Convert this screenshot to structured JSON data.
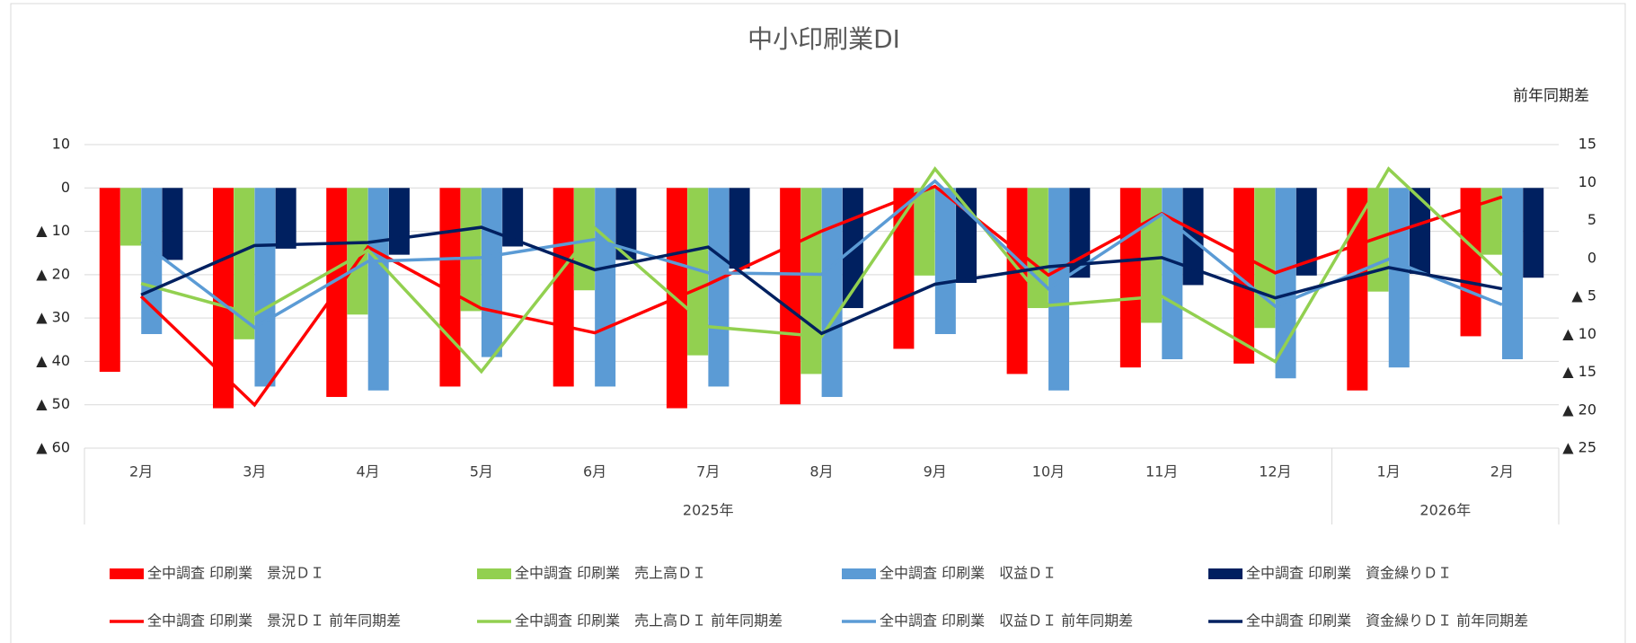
{
  "chart_data": {
    "type": "bar_line",
    "title": "中小印刷業DI",
    "y2_label": "前年同期差",
    "categories": [
      "2月",
      "3月",
      "4月",
      "5月",
      "6月",
      "7月",
      "8月",
      "9月",
      "10月",
      "11月",
      "12月",
      "1月",
      "2月"
    ],
    "groups": [
      {
        "label": "2025年",
        "span": 11
      },
      {
        "label": "2026年",
        "span": 2
      }
    ],
    "ylim": [
      -60,
      10
    ],
    "yticks": [
      10,
      0,
      {
        "value": -10,
        "label": "▲ 10"
      },
      {
        "value": -20,
        "label": "▲ 20"
      },
      {
        "value": -30,
        "label": "▲ 30"
      },
      {
        "value": -40,
        "label": "▲ 40"
      },
      {
        "value": -50,
        "label": "▲ 50"
      },
      {
        "value": -60,
        "label": "▲ 60"
      }
    ],
    "y2lim": [
      -25,
      15
    ],
    "y2ticks": [
      15,
      10,
      5,
      0,
      {
        "value": -5,
        "label": "▲ 5"
      },
      {
        "value": -10,
        "label": "▲ 10"
      },
      {
        "value": -15,
        "label": "▲ 15"
      },
      {
        "value": -20,
        "label": "▲ 20"
      },
      {
        "value": -25,
        "label": "▲ 25"
      }
    ],
    "grid": true,
    "series": [
      {
        "name": "全中調査 印刷業　景況ＤＩ",
        "kind": "bar",
        "color": "#ff0000",
        "values": [
          -42.4,
          -50.8,
          -48.2,
          -45.8,
          -45.8,
          -50.8,
          -49.9,
          -37.1,
          -42.9,
          -41.4,
          -40.5,
          -46.7,
          -34.2
        ]
      },
      {
        "name": "全中調査 印刷業　売上高ＤＩ",
        "kind": "bar",
        "color": "#92d050",
        "values": [
          -13.3,
          -34.9,
          -29.2,
          -28.4,
          -23.6,
          -38.6,
          -42.9,
          -20.2,
          -27.7,
          -31.1,
          -32.3,
          -23.9,
          -15.4
        ]
      },
      {
        "name": "全中調査 印刷業　収益ＤＩ",
        "kind": "bar",
        "color": "#5b9bd5",
        "values": [
          -33.7,
          -45.8,
          -46.7,
          -39,
          -45.8,
          -45.8,
          -48.2,
          -33.7,
          -46.7,
          -39.5,
          -43.9,
          -41.4,
          -39.5
        ]
      },
      {
        "name": "全中調査 印刷業　資金繰りＤＩ",
        "kind": "bar",
        "color": "#002060",
        "values": [
          -16.6,
          -14,
          -15.4,
          -13.5,
          -16.6,
          -18.6,
          -27.7,
          -21.9,
          -20.7,
          -22.4,
          -20.2,
          -19.8,
          -20.7
        ]
      },
      {
        "name": "全中調査 印刷業　景況ＤＩ 前年同期差",
        "kind": "line",
        "axis": "y2",
        "color": "#ff0000",
        "values": [
          -5,
          -19.3,
          1.5,
          -6.6,
          -9.8,
          -3.4,
          3.6,
          9.5,
          -2.2,
          5.9,
          -1.9,
          3.2,
          8.1
        ]
      },
      {
        "name": "全中調査 印刷業　売上高ＤＩ 前年同期差",
        "kind": "line",
        "axis": "y2",
        "color": "#92d050",
        "values": [
          -3.3,
          -7.4,
          1.1,
          -14.9,
          4,
          -9,
          -10.3,
          11.8,
          -6.2,
          -5,
          -13.6,
          11.8,
          -2.2
        ]
      },
      {
        "name": "全中調査 印刷業　収益ＤＩ 前年同期差",
        "kind": "line",
        "axis": "y2",
        "color": "#5b9bd5",
        "values": [
          2.2,
          -9.1,
          -0.4,
          0.1,
          2.5,
          -1.9,
          -2.1,
          10.2,
          -4,
          5.8,
          -6.3,
          -0.1,
          -6.1
        ]
      },
      {
        "name": "全中調査 印刷業　資金繰りＤＩ 前年同期差",
        "kind": "line",
        "axis": "y2",
        "color": "#002060",
        "values": [
          -4.8,
          1.7,
          2.1,
          4.1,
          -1.5,
          1.5,
          -9.9,
          -3.4,
          -1.1,
          0.1,
          -5.2,
          -1.2,
          -4
        ]
      }
    ]
  }
}
